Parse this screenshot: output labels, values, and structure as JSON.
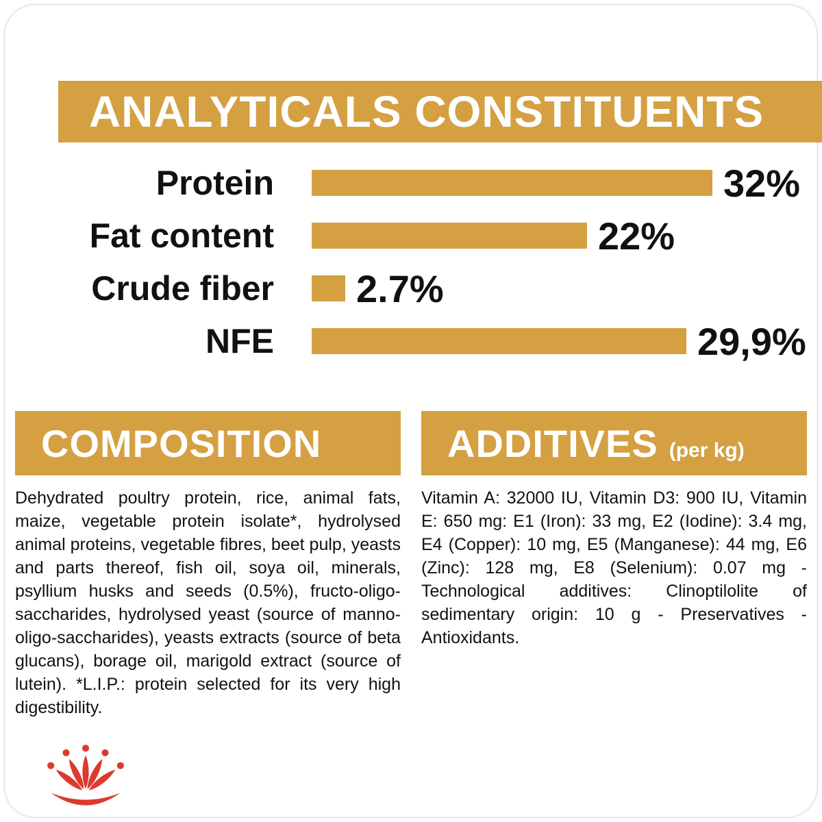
{
  "colors": {
    "gold": "#D4A042",
    "red": "#DC3A2F",
    "text": "#111111"
  },
  "analyticals": {
    "title": "ANALYTICALS CONSTITUENTS",
    "chart_data": {
      "type": "bar",
      "orientation": "horizontal",
      "categories": [
        "Protein",
        "Fat content",
        "Crude fiber",
        "NFE"
      ],
      "values": [
        32,
        22,
        2.7,
        29.9
      ],
      "value_labels": [
        "32%",
        "22%",
        "2.7%",
        "29,9%"
      ],
      "xlim": [
        0,
        32
      ],
      "bar_color": "#D4A042",
      "title": "ANALYTICALS CONSTITUENTS",
      "xlabel": "",
      "ylabel": "",
      "grid": false,
      "legend": "none"
    }
  },
  "composition": {
    "title": "COMPOSITION",
    "body": "Dehydrated poultry protein, rice, animal fats, maize, vegetable protein isolate*, hydrolysed animal proteins, vegetable fibres, beet pulp, yeasts and parts thereof, fish oil, soya oil, minerals, psyllium husks and seeds (0.5%), fructo-oligo-saccharides, hydrolysed yeast (source of manno-oligo-saccharides), yeasts extracts (source of beta glucans), borage oil, marigold extract (source of lutein). *L.I.P.: protein selected for its very high digestibility."
  },
  "additives": {
    "title": "ADDITIVES",
    "unit": "(per kg)",
    "body": "Vitamin A: 32000 IU, Vitamin D3: 900 IU, Vitamin E: 650 mg: E1 (Iron): 33 mg, E2 (Iodine): 3.4 mg, E4 (Copper): 10 mg, E5 (Manganese): 44 mg, E6 (Zinc): 128 mg, E8 (Selenium): 0.07 mg - Technological additives: Clinoptilolite of sedimentary origin: 10 g - Preservatives - Antioxidants."
  },
  "logo": {
    "name": "royal-canin-crown-logo"
  }
}
